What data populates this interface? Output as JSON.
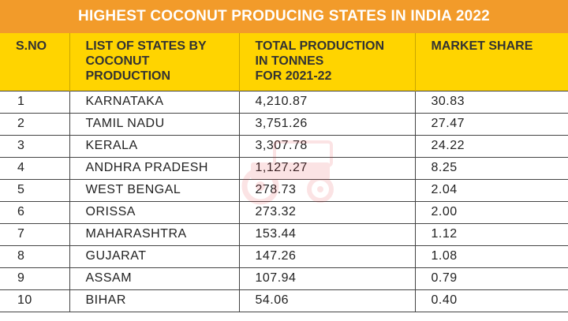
{
  "title": "HIGHEST COCONUT PRODUCING STATES IN INDIA 2022",
  "headers": {
    "sno": "S.NO",
    "state_l1": "LIST OF STATES BY",
    "state_l2": "COCONUT",
    "state_l3": "PRODUCTION",
    "prod_l1": "TOTAL PRODUCTION",
    "prod_l2": "IN TONNES",
    "prod_l3": "FOR 2021-22",
    "share": "MARKET SHARE"
  },
  "rows": [
    {
      "sno": "1",
      "state": "KARNATAKA",
      "production": "4,210.87",
      "share": "30.83"
    },
    {
      "sno": "2",
      "state": "TAMIL NADU",
      "production": "3,751.26",
      "share": "27.47"
    },
    {
      "sno": "3",
      "state": "KERALA",
      "production": "3,307.78",
      "share": "24.22"
    },
    {
      "sno": "4",
      "state": "ANDHRA PRADESH",
      "production": "1,127.27",
      "share": "8.25"
    },
    {
      "sno": "5",
      "state": "WEST BENGAL",
      "production": "278.73",
      "share": "2.04"
    },
    {
      "sno": "6",
      "state": "ORISSA",
      "production": "273.32",
      "share": "2.00"
    },
    {
      "sno": "7",
      "state": "MAHARASHTRA",
      "production": "153.44",
      "share": "1.12"
    },
    {
      "sno": "8",
      "state": "GUJARAT",
      "production": "147.26",
      "share": "1.08"
    },
    {
      "sno": "9",
      "state": "ASSAM",
      "production": "107.94",
      "share": "0.79"
    },
    {
      "sno": "10",
      "state": "BIHAR",
      "production": "54.06",
      "share": "0.40"
    }
  ],
  "colors": {
    "title_bg": "#f29b2a",
    "header_bg": "#ffd400",
    "watermark": "#e8313a"
  },
  "icons": {
    "watermark": "tractor-logo-icon"
  }
}
